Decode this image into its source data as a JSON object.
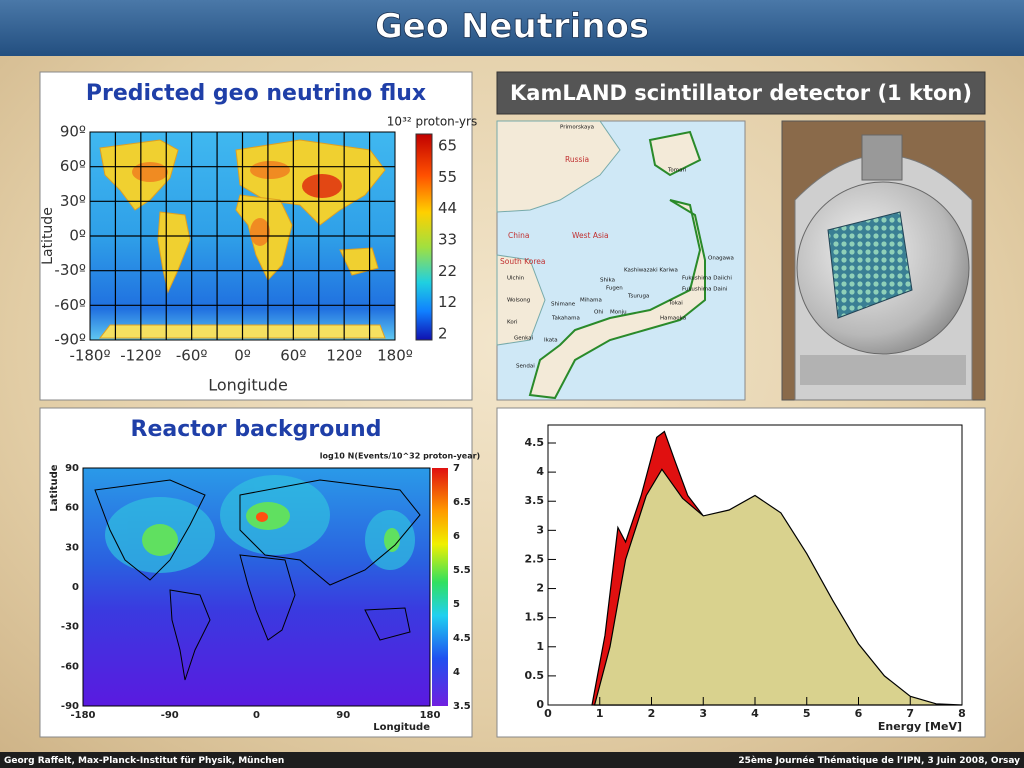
{
  "title": "Geo Neutrinos",
  "footer": {
    "left": "Georg Raffelt, Max-Planck-Institut für Physik, München",
    "right": "25ème Journée Thématique de l’IPN, 3 Juin 2008, Orsay"
  },
  "flux_map": {
    "title": "Predicted geo neutrino flux",
    "unit": "10³² proton-yrs",
    "x_label": "Longitude",
    "y_label": "Latitude",
    "x_ticks": [
      "-180º",
      "-120º",
      "-60º",
      "0º",
      "60º",
      "120º",
      "180º"
    ],
    "y_ticks": [
      "90º",
      "60º",
      "30º",
      "0º",
      "-30º",
      "-60º",
      "-90º"
    ],
    "colorbar": [
      "65",
      "55",
      "44",
      "33",
      "22",
      "12",
      "2"
    ]
  },
  "kamland": {
    "title": "KamLAND scintillator detector (1 kton)",
    "map_labels": [
      "Primorskaya",
      "Russia",
      "Tomari",
      "China",
      "West Asia",
      "South Korea",
      "Onagawa",
      "Kashiwazaki Kariwa",
      "Fukushima Daiichi",
      "Fukushima Daini",
      "Shika",
      "Tsuruga",
      "Tokai",
      "Mihama",
      "Hamaoka",
      "Monju",
      "Ohi",
      "Takahama",
      "Fugen",
      "Shimane",
      "Ulchin",
      "Wolsong",
      "Kori",
      "Genkai",
      "Sendai",
      "Ikata"
    ]
  },
  "reactor_map": {
    "title": "Reactor background",
    "unit": "log10 N(Events/10^32 proton-year)",
    "x_label": "Longitude",
    "y_label": "Latitude",
    "x_ticks": [
      "-180",
      "-90",
      "0",
      "90",
      "180"
    ],
    "y_ticks": [
      "90",
      "60",
      "30",
      "0",
      "-30",
      "-60",
      "-90"
    ],
    "colorbar": [
      "7",
      "6.5",
      "6",
      "5.5",
      "5",
      "4.5",
      "4",
      "3.5"
    ]
  },
  "spectrum": {
    "x_label": "Energy [MeV]",
    "x_ticks": [
      "0",
      "1",
      "2",
      "3",
      "4",
      "5",
      "6",
      "7",
      "8"
    ],
    "y_ticks": [
      "0",
      "0.5",
      "1",
      "1.5",
      "2",
      "2.5",
      "3",
      "3.5",
      "4",
      "4.5"
    ]
  }
}
